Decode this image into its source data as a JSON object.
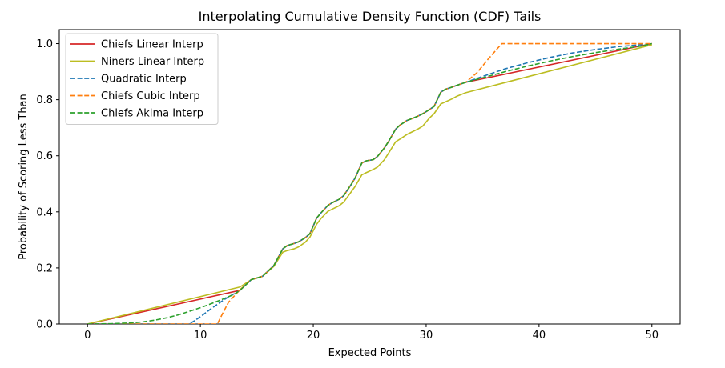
{
  "chart_data": {
    "type": "line",
    "title": "Interpolating Cumulative Density Function (CDF) Tails",
    "xlabel": "Expected Points",
    "ylabel": "Probability of Scoring Less Than",
    "xlim": [
      -2.5,
      52.5
    ],
    "ylim": [
      0,
      1.05
    ],
    "xticks": [
      0,
      10,
      20,
      30,
      40,
      50
    ],
    "xtick_labels": [
      "0",
      "10",
      "20",
      "30",
      "40",
      "50"
    ],
    "yticks": [
      0.0,
      0.2,
      0.4,
      0.6,
      0.8,
      1.0
    ],
    "ytick_labels": [
      "0.0",
      "0.2",
      "0.4",
      "0.6",
      "0.8",
      "1.0"
    ],
    "grid": false,
    "legend_position": "upper-left",
    "series": [
      {
        "name": "Chiefs Linear Interp",
        "color": "#d62728",
        "style": "solid",
        "x": [
          0,
          13.5,
          14.5,
          15.5,
          16.5,
          17.3,
          17.7,
          18.3,
          18.7,
          19.3,
          19.7,
          20.3,
          20.7,
          21.3,
          21.7,
          22.3,
          22.7,
          23.3,
          23.7,
          24.3,
          24.7,
          25.3,
          25.7,
          26.3,
          26.7,
          27.3,
          27.7,
          28.3,
          28.7,
          29.3,
          29.7,
          30.3,
          30.7,
          31.3,
          31.7,
          32.3,
          32.7,
          33.5,
          50
        ],
        "y": [
          0,
          0.12,
          0.158,
          0.17,
          0.208,
          0.268,
          0.28,
          0.287,
          0.293,
          0.308,
          0.322,
          0.378,
          0.397,
          0.423,
          0.433,
          0.445,
          0.458,
          0.494,
          0.52,
          0.574,
          0.582,
          0.586,
          0.598,
          0.628,
          0.653,
          0.695,
          0.71,
          0.726,
          0.732,
          0.742,
          0.75,
          0.765,
          0.776,
          0.827,
          0.837,
          0.845,
          0.851,
          0.862,
          1.0
        ]
      },
      {
        "name": "Niners Linear Interp",
        "color": "#bcbd22",
        "style": "solid",
        "x": [
          0,
          13.5,
          14.5,
          15.5,
          16.5,
          17.3,
          17.7,
          18.3,
          18.7,
          19.3,
          19.7,
          20.3,
          20.7,
          21.3,
          21.7,
          22.3,
          22.7,
          23.3,
          23.7,
          24.3,
          24.7,
          25.3,
          25.7,
          26.3,
          26.7,
          27.3,
          27.7,
          28.3,
          28.7,
          29.3,
          29.7,
          30.3,
          30.7,
          31.3,
          31.7,
          32.3,
          32.7,
          33.5,
          50
        ],
        "y": [
          0,
          0.132,
          0.158,
          0.17,
          0.205,
          0.256,
          0.262,
          0.268,
          0.275,
          0.292,
          0.31,
          0.356,
          0.377,
          0.402,
          0.41,
          0.422,
          0.435,
          0.468,
          0.49,
          0.532,
          0.54,
          0.551,
          0.56,
          0.586,
          0.611,
          0.65,
          0.66,
          0.676,
          0.684,
          0.696,
          0.706,
          0.735,
          0.75,
          0.785,
          0.792,
          0.803,
          0.812,
          0.825,
          0.996
        ]
      },
      {
        "name": "Quadratic Interp",
        "color": "#1f77b4",
        "style": "dashed",
        "x": [
          0,
          9,
          9.5,
          10,
          10.5,
          11,
          11.5,
          12,
          12.5,
          13,
          13.5,
          14.5,
          15.5,
          16.5,
          17.3,
          17.7,
          18.3,
          18.7,
          19.3,
          19.7,
          20.3,
          20.7,
          21.3,
          21.7,
          22.3,
          22.7,
          23.3,
          23.7,
          24.3,
          24.7,
          25.3,
          25.7,
          26.3,
          26.7,
          27.3,
          27.7,
          28.3,
          28.7,
          29.3,
          29.7,
          30.3,
          30.7,
          31.3,
          31.7,
          32.3,
          32.7,
          33.5,
          35,
          37,
          39,
          41,
          43,
          45,
          47,
          49,
          50
        ],
        "y": [
          0,
          0,
          0.012,
          0.026,
          0.041,
          0.056,
          0.07,
          0.084,
          0.097,
          0.108,
          0.12,
          0.158,
          0.17,
          0.208,
          0.268,
          0.28,
          0.287,
          0.293,
          0.308,
          0.322,
          0.378,
          0.397,
          0.423,
          0.433,
          0.445,
          0.458,
          0.494,
          0.52,
          0.574,
          0.582,
          0.586,
          0.598,
          0.628,
          0.653,
          0.695,
          0.71,
          0.726,
          0.732,
          0.742,
          0.75,
          0.765,
          0.776,
          0.827,
          0.837,
          0.845,
          0.851,
          0.862,
          0.883,
          0.91,
          0.932,
          0.951,
          0.967,
          0.979,
          0.989,
          0.996,
          1.0
        ]
      },
      {
        "name": "Chiefs Cubic Interp",
        "color": "#ff7f0e",
        "style": "dashed",
        "x": [
          0,
          11.5,
          12,
          12.5,
          13,
          13.5,
          14.5,
          15.5,
          16.5,
          17.3,
          17.7,
          18.3,
          18.7,
          19.3,
          19.7,
          20.3,
          20.7,
          21.3,
          21.7,
          22.3,
          22.7,
          23.3,
          23.7,
          24.3,
          24.7,
          25.3,
          25.7,
          26.3,
          26.7,
          27.3,
          27.7,
          28.3,
          28.7,
          29.3,
          29.7,
          30.3,
          30.7,
          31.3,
          31.7,
          32.3,
          32.7,
          33.5,
          34.5,
          35.5,
          36.7,
          40,
          45,
          50
        ],
        "y": [
          0,
          0,
          0.04,
          0.078,
          0.1,
          0.122,
          0.158,
          0.17,
          0.208,
          0.268,
          0.28,
          0.287,
          0.293,
          0.308,
          0.322,
          0.378,
          0.397,
          0.423,
          0.433,
          0.445,
          0.458,
          0.494,
          0.52,
          0.574,
          0.582,
          0.586,
          0.598,
          0.628,
          0.653,
          0.695,
          0.71,
          0.726,
          0.732,
          0.742,
          0.75,
          0.765,
          0.776,
          0.827,
          0.837,
          0.845,
          0.851,
          0.862,
          0.896,
          0.945,
          1.0,
          1.0,
          1.0,
          1.0
        ]
      },
      {
        "name": "Chiefs Akima Interp",
        "color": "#2ca02c",
        "style": "dashed",
        "x": [
          0,
          2,
          4,
          5,
          6,
          7,
          8,
          9,
          10,
          11,
          12,
          13,
          13.5,
          14.5,
          15.5,
          16.5,
          17.3,
          17.7,
          18.3,
          18.7,
          19.3,
          19.7,
          20.3,
          20.7,
          21.3,
          21.7,
          22.3,
          22.7,
          23.3,
          23.7,
          24.3,
          24.7,
          25.3,
          25.7,
          26.3,
          26.7,
          27.3,
          27.7,
          28.3,
          28.7,
          29.3,
          29.7,
          30.3,
          30.7,
          31.3,
          31.7,
          32.3,
          32.7,
          33.5,
          35,
          37,
          39,
          41,
          43,
          45,
          47,
          49,
          50
        ],
        "y": [
          0,
          0.001,
          0.004,
          0.008,
          0.014,
          0.022,
          0.032,
          0.045,
          0.058,
          0.073,
          0.089,
          0.106,
          0.12,
          0.158,
          0.17,
          0.208,
          0.268,
          0.28,
          0.287,
          0.293,
          0.308,
          0.322,
          0.378,
          0.397,
          0.423,
          0.433,
          0.445,
          0.458,
          0.494,
          0.52,
          0.574,
          0.582,
          0.586,
          0.598,
          0.628,
          0.653,
          0.695,
          0.71,
          0.726,
          0.732,
          0.742,
          0.75,
          0.765,
          0.776,
          0.827,
          0.837,
          0.845,
          0.851,
          0.862,
          0.878,
          0.9,
          0.92,
          0.938,
          0.954,
          0.968,
          0.98,
          0.991,
          1.0
        ]
      }
    ]
  }
}
